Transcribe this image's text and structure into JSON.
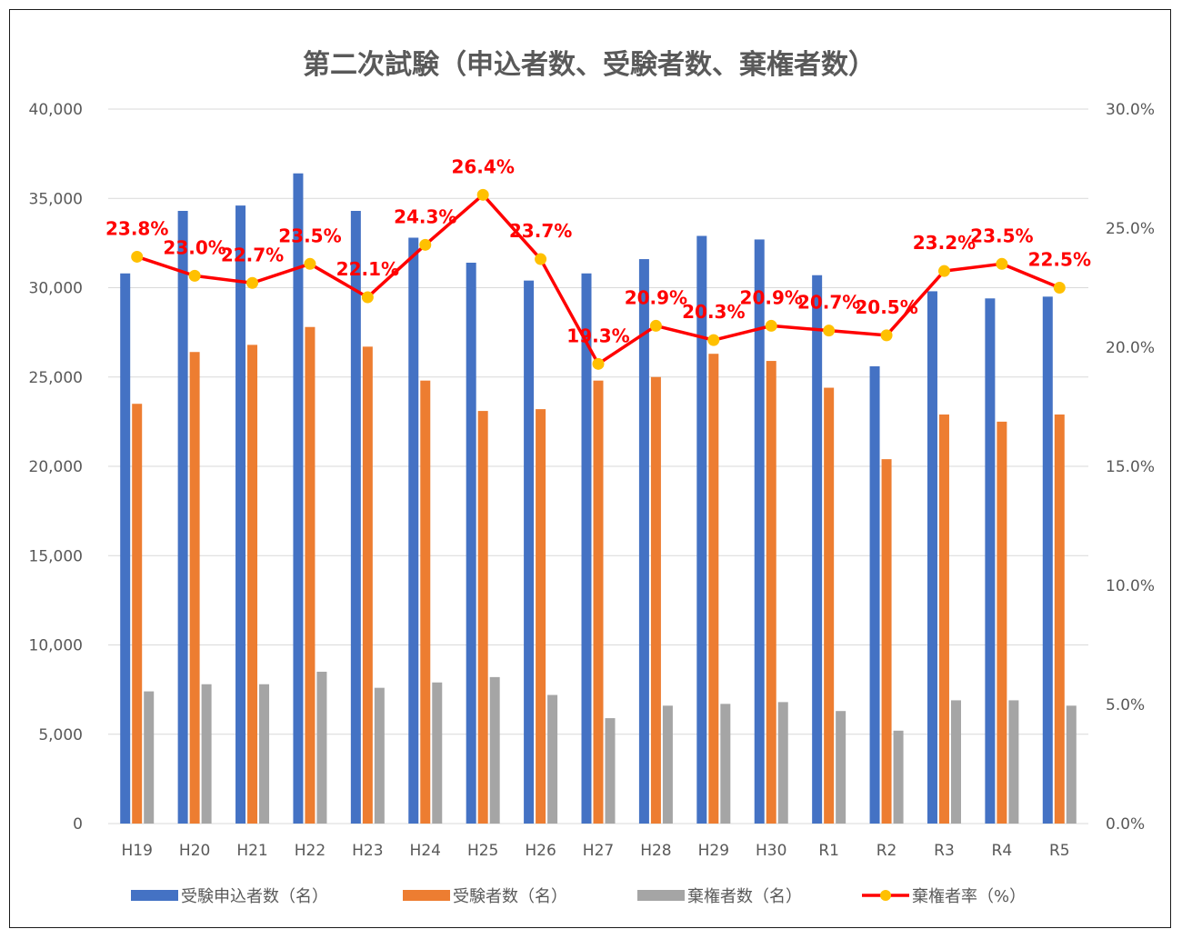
{
  "chart_data": {
    "type": "bar",
    "title": "第二次試験（申込者数、受験者数、棄権者数）",
    "categories": [
      "H19",
      "H20",
      "H21",
      "H22",
      "H23",
      "H24",
      "H25",
      "H26",
      "H27",
      "H28",
      "H29",
      "H30",
      "R1",
      "R2",
      "R3",
      "R4",
      "R5"
    ],
    "series": [
      {
        "name": "受験申込者数（名）",
        "type": "bar",
        "axis": "left",
        "color": "#4472c4",
        "values": [
          30800,
          34300,
          34600,
          36400,
          34300,
          32800,
          31400,
          30400,
          30800,
          31600,
          32900,
          32700,
          30700,
          25600,
          29800,
          29400,
          29500
        ]
      },
      {
        "name": "受験者数（名）",
        "type": "bar",
        "axis": "left",
        "color": "#ed7d31",
        "values": [
          23500,
          26400,
          26800,
          27800,
          26700,
          24800,
          23100,
          23200,
          24800,
          25000,
          26300,
          25900,
          24400,
          20400,
          22900,
          22500,
          22900
        ]
      },
      {
        "name": "棄権者数（名）",
        "type": "bar",
        "axis": "left",
        "color": "#a5a5a5",
        "values": [
          7400,
          7800,
          7800,
          8500,
          7600,
          7900,
          8200,
          7200,
          5900,
          6600,
          6700,
          6800,
          6300,
          5200,
          6900,
          6900,
          6600
        ]
      },
      {
        "name": "棄権者率（%）",
        "type": "line",
        "axis": "right",
        "color": "#ff0000",
        "marker_color": "#ffc000",
        "values": [
          23.8,
          23.0,
          22.7,
          23.5,
          22.1,
          24.3,
          26.4,
          23.7,
          19.3,
          20.9,
          20.3,
          20.9,
          20.7,
          20.5,
          23.2,
          23.5,
          22.5
        ],
        "labels": [
          "23.8%",
          "23.0%",
          "22.7%",
          "23.5%",
          "22.1%",
          "24.3%",
          "26.4%",
          "23.7%",
          "19.3%",
          "20.9%",
          "20.3%",
          "20.9%",
          "20.7%",
          "20.5%",
          "23.2%",
          "23.5%",
          "22.5%"
        ]
      }
    ],
    "y_left": {
      "min": 0,
      "max": 40000,
      "ticks": [
        "0",
        "5,000",
        "10,000",
        "15,000",
        "20,000",
        "25,000",
        "30,000",
        "35,000",
        "40,000"
      ]
    },
    "y_right": {
      "min": 0,
      "max": 30,
      "ticks": [
        "0.0%",
        "5.0%",
        "10.0%",
        "15.0%",
        "20.0%",
        "25.0%",
        "30.0%"
      ]
    },
    "grid": true,
    "legend": "bottom"
  }
}
